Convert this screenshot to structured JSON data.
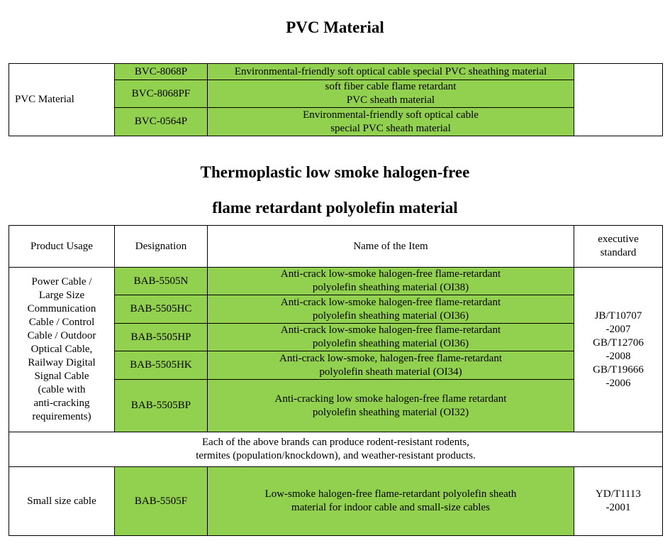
{
  "pvc": {
    "title": "PVC Material",
    "category": "PVC Material",
    "rows": [
      {
        "designation": "BVC-8068P",
        "name": "Environmental-friendly soft optical cable special PVC sheathing material"
      },
      {
        "designation": "BVC-8068PF",
        "name": "soft fiber cable flame retardant\nPVC sheath material"
      },
      {
        "designation": "BVC-0564P",
        "name": "Environmental-friendly soft optical cable\nspecial PVC sheath material"
      }
    ]
  },
  "polyolefin": {
    "title_line1": "Thermoplastic low smoke halogen-free",
    "title_line2": "flame retardant polyolefin material",
    "headers": {
      "usage": "Product Usage",
      "designation": "Designation",
      "name": "Name of the Item",
      "standard": "executive\nstandard"
    },
    "group1": {
      "usage": "Power Cable /\nLarge Size\nCommunication\nCable / Control\nCable / Outdoor\nOptical Cable,\nRailway Digital\nSignal Cable\n(cable with\nanti-cracking\nrequirements)",
      "standard": "JB/T10707\n-2007\nGB/T12706\n-2008\nGB/T19666\n-2006",
      "rows": [
        {
          "designation": "BAB-5505N",
          "name": "Anti-crack low-smoke halogen-free flame-retardant\npolyolefin sheathing material (OI38)"
        },
        {
          "designation": "BAB-5505HC",
          "name": "Anti-crack low-smoke halogen-free flame-retardant\npolyolefin sheathing material (OI36)"
        },
        {
          "designation": "BAB-5505HP",
          "name": "Anti-crack low-smoke halogen-free flame-retardant\npolyolefin sheathing material (OI36)"
        },
        {
          "designation": "BAB-5505HK",
          "name": "Anti-crack low-smoke, halogen-free flame-retardant\npolyolefin sheath material (OI34)"
        },
        {
          "designation": "BAB-5505BP",
          "name": "Anti-cracking low smoke halogen-free flame retardant\npolyolefin sheathing material (OI32)"
        }
      ]
    },
    "note": "Each of the above brands can produce rodent-resistant rodents,\ntermites (population/knockdown), and weather-resistant products.",
    "group2": {
      "usage": "Small size cable",
      "designation": "BAB-5505F",
      "name": "Low-smoke halogen-free flame-retardant polyolefin sheath\nmaterial for indoor cable and small-size cables",
      "standard": "YD/T1113\n-2001"
    }
  },
  "colors": {
    "highlight": "#92d050"
  }
}
